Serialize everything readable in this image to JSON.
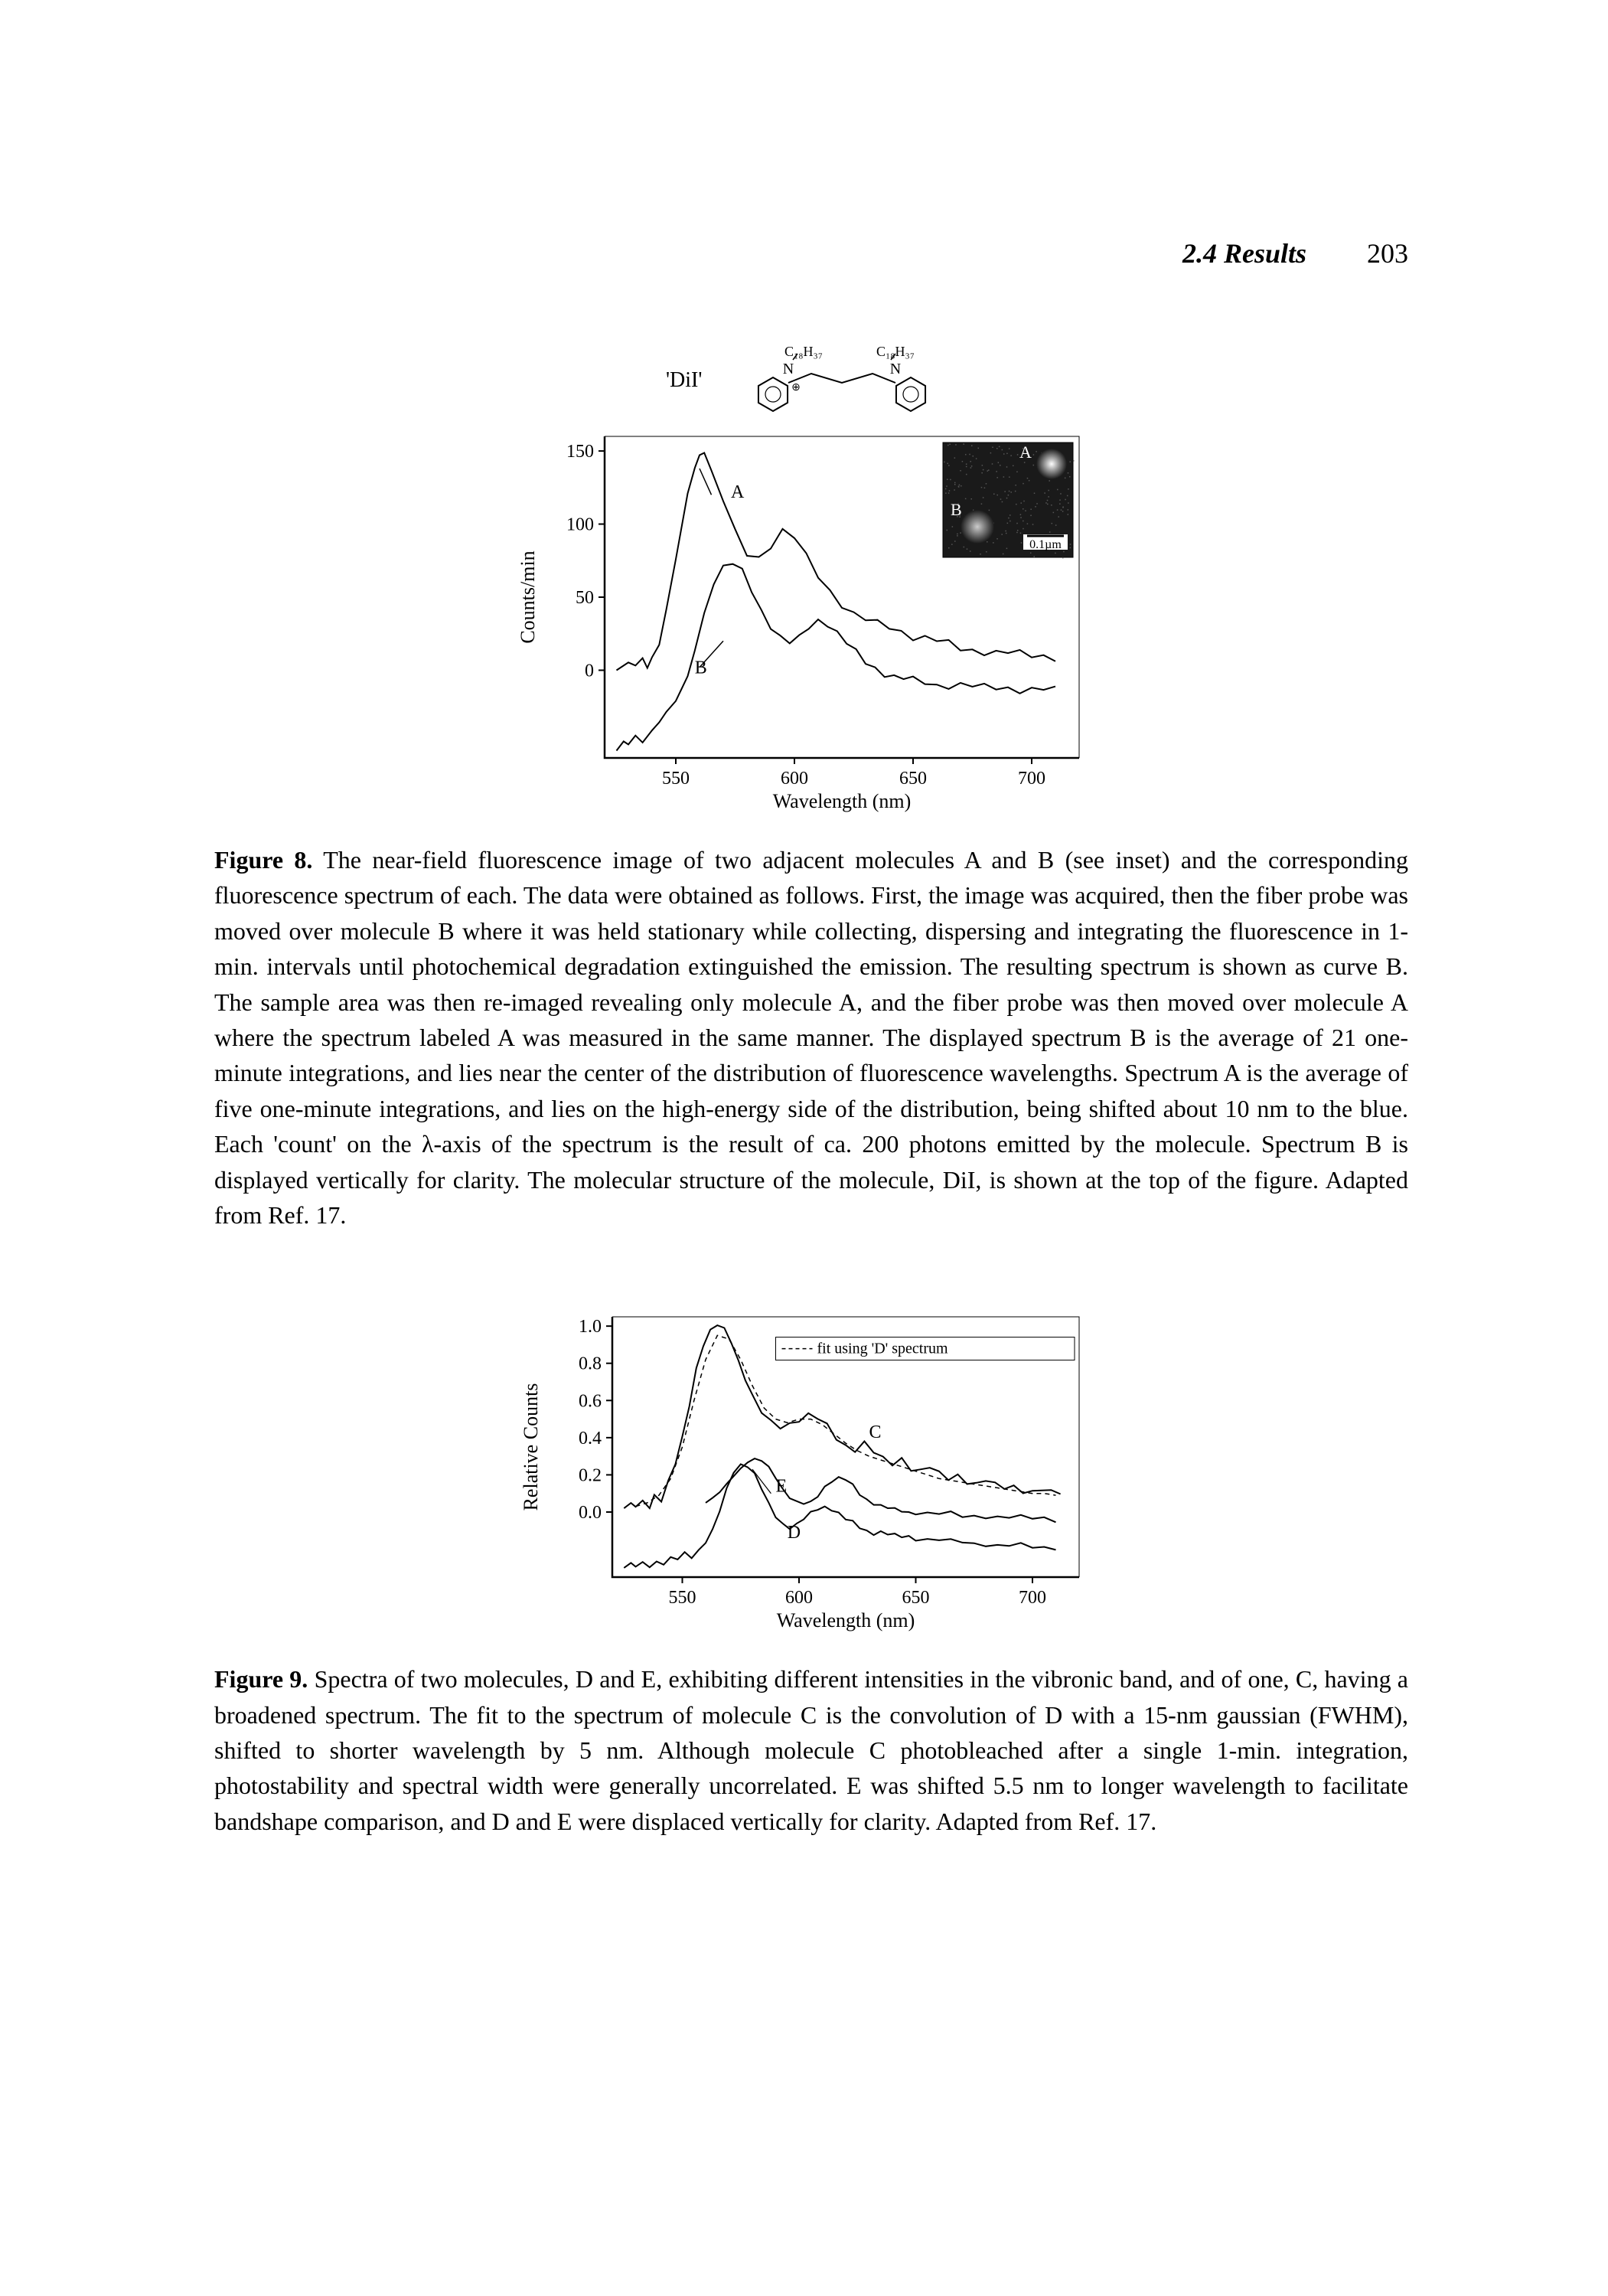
{
  "header": {
    "section": "2.4 Results",
    "page_number": "203"
  },
  "figure8": {
    "molecule_label": "'DiI'",
    "substituent_label": "C₁₈H₃₇",
    "chart": {
      "type": "line",
      "xlabel": "Wavelength (nm)",
      "ylabel": "Counts/min",
      "label_fontsize": 26,
      "tick_fontsize": 24,
      "xlim": [
        520,
        720
      ],
      "ylim": [
        -60,
        160
      ],
      "xticks": [
        550,
        600,
        650,
        700
      ],
      "yticks": [
        0,
        50,
        100,
        150
      ],
      "line_color": "#000000",
      "line_width": 2,
      "background_color": "#ffffff",
      "series_A_label": "A",
      "series_B_label": "B",
      "series_A": [
        [
          525,
          0
        ],
        [
          530,
          4
        ],
        [
          533,
          2
        ],
        [
          536,
          8
        ],
        [
          538,
          3
        ],
        [
          540,
          10
        ],
        [
          543,
          18
        ],
        [
          546,
          40
        ],
        [
          550,
          75
        ],
        [
          555,
          120
        ],
        [
          558,
          140
        ],
        [
          560,
          148
        ],
        [
          562,
          150
        ],
        [
          565,
          135
        ],
        [
          570,
          115
        ],
        [
          575,
          95
        ],
        [
          580,
          80
        ],
        [
          585,
          78
        ],
        [
          590,
          85
        ],
        [
          595,
          95
        ],
        [
          600,
          90
        ],
        [
          605,
          78
        ],
        [
          610,
          65
        ],
        [
          615,
          55
        ],
        [
          620,
          45
        ],
        [
          625,
          38
        ],
        [
          630,
          34
        ],
        [
          635,
          32
        ],
        [
          640,
          30
        ],
        [
          645,
          27
        ],
        [
          650,
          23
        ],
        [
          655,
          22
        ],
        [
          660,
          20
        ],
        [
          665,
          18
        ],
        [
          670,
          15
        ],
        [
          675,
          14
        ],
        [
          680,
          13
        ],
        [
          685,
          12
        ],
        [
          690,
          12
        ],
        [
          695,
          11
        ],
        [
          700,
          10
        ],
        [
          705,
          10
        ],
        [
          710,
          9
        ]
      ],
      "series_B": [
        [
          525,
          -55
        ],
        [
          528,
          -50
        ],
        [
          530,
          -52
        ],
        [
          533,
          -45
        ],
        [
          536,
          -48
        ],
        [
          540,
          -40
        ],
        [
          543,
          -35
        ],
        [
          546,
          -30
        ],
        [
          550,
          -22
        ],
        [
          555,
          -5
        ],
        [
          558,
          15
        ],
        [
          562,
          40
        ],
        [
          566,
          60
        ],
        [
          570,
          70
        ],
        [
          574,
          72
        ],
        [
          578,
          68
        ],
        [
          582,
          55
        ],
        [
          586,
          42
        ],
        [
          590,
          30
        ],
        [
          594,
          22
        ],
        [
          598,
          18
        ],
        [
          602,
          22
        ],
        [
          606,
          30
        ],
        [
          610,
          35
        ],
        [
          614,
          32
        ],
        [
          618,
          25
        ],
        [
          622,
          18
        ],
        [
          626,
          12
        ],
        [
          630,
          6
        ],
        [
          634,
          2
        ],
        [
          638,
          -2
        ],
        [
          642,
          -5
        ],
        [
          646,
          -6
        ],
        [
          650,
          -7
        ],
        [
          655,
          -8
        ],
        [
          660,
          -10
        ],
        [
          665,
          -10
        ],
        [
          670,
          -10
        ],
        [
          675,
          -11
        ],
        [
          680,
          -12
        ],
        [
          685,
          -12
        ],
        [
          690,
          -12
        ],
        [
          695,
          -13
        ],
        [
          700,
          -13
        ],
        [
          705,
          -13
        ],
        [
          710,
          -14
        ]
      ],
      "inset": {
        "label_A": "A",
        "label_B": "B",
        "scale_bar_label": "0.1µm",
        "bg_color": "#1a1a1a",
        "spot_color": "#dddddd"
      }
    },
    "caption_label": "Figure 8.",
    "caption_text": "The near-field fluorescence image of two adjacent molecules A and B (see inset) and the corresponding fluorescence spectrum of each. The data were obtained as follows. First, the image was acquired, then the fiber probe was moved over molecule B where it was held stationary while collecting, dispersing and integrating the fluorescence in 1-min. intervals until photochemical degradation extinguished the emission. The resulting spectrum is shown as curve B. The sample area was then re-imaged revealing only molecule A, and the fiber probe was then moved over molecule A where the spectrum labeled A was measured in the same manner. The displayed spectrum B is the average of 21 one-minute integrations, and lies near the center of the distribution of fluorescence wavelengths. Spectrum A is the average of five one-minute integrations, and lies on the high-energy side of the distribution, being shifted about 10 nm to the blue. Each 'count' on the λ-axis of the spectrum is the result of ca. 200 photons emitted by the molecule. Spectrum B is displayed vertically for clarity. The molecular structure of the molecule, DiI, is shown at the top of the figure. Adapted from Ref. 17."
  },
  "figure9": {
    "chart": {
      "type": "line",
      "xlabel": "Wavelength (nm)",
      "ylabel": "Relative Counts",
      "label_fontsize": 26,
      "tick_fontsize": 24,
      "xlim": [
        520,
        720
      ],
      "ylim": [
        -0.35,
        1.05
      ],
      "xticks": [
        550,
        600,
        650,
        700
      ],
      "yticks": [
        0.0,
        0.2,
        0.4,
        0.6,
        0.8,
        1.0
      ],
      "ytick_labels": [
        "0.0",
        "0.2",
        "0.4",
        "0.6",
        "0.8",
        "1.0"
      ],
      "line_color": "#000000",
      "line_width": 2,
      "background_color": "#ffffff",
      "legend_text": "fit using 'D' spectrum",
      "label_C": "C",
      "label_D": "D",
      "label_E": "E",
      "series_C": [
        [
          525,
          0.02
        ],
        [
          528,
          0.04
        ],
        [
          530,
          0.02
        ],
        [
          533,
          0.06
        ],
        [
          536,
          0.03
        ],
        [
          538,
          0.1
        ],
        [
          541,
          0.06
        ],
        [
          544,
          0.16
        ],
        [
          547,
          0.25
        ],
        [
          550,
          0.4
        ],
        [
          553,
          0.58
        ],
        [
          556,
          0.78
        ],
        [
          559,
          0.9
        ],
        [
          562,
          0.97
        ],
        [
          565,
          1.0
        ],
        [
          568,
          0.98
        ],
        [
          571,
          0.92
        ],
        [
          574,
          0.82
        ],
        [
          577,
          0.72
        ],
        [
          580,
          0.62
        ],
        [
          584,
          0.53
        ],
        [
          588,
          0.48
        ],
        [
          592,
          0.46
        ],
        [
          596,
          0.48
        ],
        [
          600,
          0.5
        ],
        [
          604,
          0.52
        ],
        [
          608,
          0.5
        ],
        [
          612,
          0.46
        ],
        [
          616,
          0.4
        ],
        [
          620,
          0.36
        ],
        [
          624,
          0.34
        ],
        [
          628,
          0.37
        ],
        [
          632,
          0.32
        ],
        [
          636,
          0.28
        ],
        [
          640,
          0.26
        ],
        [
          644,
          0.29
        ],
        [
          648,
          0.24
        ],
        [
          652,
          0.22
        ],
        [
          656,
          0.24
        ],
        [
          660,
          0.2
        ],
        [
          664,
          0.18
        ],
        [
          668,
          0.2
        ],
        [
          672,
          0.17
        ],
        [
          676,
          0.15
        ],
        [
          680,
          0.17
        ],
        [
          684,
          0.14
        ],
        [
          688,
          0.13
        ],
        [
          692,
          0.14
        ],
        [
          696,
          0.12
        ],
        [
          700,
          0.11
        ],
        [
          704,
          0.12
        ],
        [
          708,
          0.1
        ],
        [
          712,
          0.1
        ]
      ],
      "series_C_fit": [
        [
          530,
          0.03
        ],
        [
          535,
          0.05
        ],
        [
          540,
          0.09
        ],
        [
          545,
          0.18
        ],
        [
          550,
          0.35
        ],
        [
          555,
          0.6
        ],
        [
          560,
          0.82
        ],
        [
          565,
          0.95
        ],
        [
          570,
          0.93
        ],
        [
          575,
          0.82
        ],
        [
          580,
          0.68
        ],
        [
          585,
          0.56
        ],
        [
          590,
          0.5
        ],
        [
          595,
          0.48
        ],
        [
          600,
          0.5
        ],
        [
          605,
          0.5
        ],
        [
          610,
          0.47
        ],
        [
          615,
          0.42
        ],
        [
          620,
          0.37
        ],
        [
          625,
          0.33
        ],
        [
          630,
          0.3
        ],
        [
          635,
          0.28
        ],
        [
          640,
          0.26
        ],
        [
          645,
          0.24
        ],
        [
          650,
          0.22
        ],
        [
          655,
          0.2
        ],
        [
          660,
          0.18
        ],
        [
          665,
          0.17
        ],
        [
          670,
          0.16
        ],
        [
          675,
          0.15
        ],
        [
          680,
          0.14
        ],
        [
          685,
          0.13
        ],
        [
          690,
          0.12
        ],
        [
          695,
          0.11
        ],
        [
          700,
          0.1
        ],
        [
          705,
          0.1
        ],
        [
          710,
          0.09
        ]
      ],
      "series_D": [
        [
          525,
          -0.3
        ],
        [
          528,
          -0.28
        ],
        [
          530,
          -0.3
        ],
        [
          533,
          -0.27
        ],
        [
          536,
          -0.29
        ],
        [
          539,
          -0.26
        ],
        [
          542,
          -0.28
        ],
        [
          545,
          -0.25
        ],
        [
          548,
          -0.26
        ],
        [
          551,
          -0.22
        ],
        [
          554,
          -0.24
        ],
        [
          557,
          -0.2
        ],
        [
          560,
          -0.16
        ],
        [
          563,
          -0.1
        ],
        [
          566,
          0.0
        ],
        [
          569,
          0.12
        ],
        [
          572,
          0.22
        ],
        [
          575,
          0.26
        ],
        [
          578,
          0.25
        ],
        [
          581,
          0.2
        ],
        [
          584,
          0.12
        ],
        [
          587,
          0.04
        ],
        [
          590,
          -0.02
        ],
        [
          593,
          -0.06
        ],
        [
          596,
          -0.08
        ],
        [
          599,
          -0.07
        ],
        [
          602,
          -0.04
        ],
        [
          605,
          -0.01
        ],
        [
          608,
          0.02
        ],
        [
          611,
          0.03
        ],
        [
          614,
          0.02
        ],
        [
          617,
          -0.01
        ],
        [
          620,
          -0.04
        ],
        [
          623,
          -0.06
        ],
        [
          626,
          -0.08
        ],
        [
          629,
          -0.1
        ],
        [
          632,
          -0.11
        ],
        [
          635,
          -0.11
        ],
        [
          638,
          -0.12
        ],
        [
          641,
          -0.13
        ],
        [
          644,
          -0.13
        ],
        [
          647,
          -0.13
        ],
        [
          650,
          -0.14
        ],
        [
          655,
          -0.15
        ],
        [
          660,
          -0.15
        ],
        [
          665,
          -0.16
        ],
        [
          670,
          -0.16
        ],
        [
          675,
          -0.17
        ],
        [
          680,
          -0.17
        ],
        [
          685,
          -0.18
        ],
        [
          690,
          -0.18
        ],
        [
          695,
          -0.18
        ],
        [
          700,
          -0.19
        ],
        [
          705,
          -0.19
        ],
        [
          710,
          -0.19
        ]
      ],
      "series_E": [
        [
          560,
          0.05
        ],
        [
          563,
          0.07
        ],
        [
          566,
          0.1
        ],
        [
          569,
          0.15
        ],
        [
          572,
          0.2
        ],
        [
          575,
          0.24
        ],
        [
          578,
          0.27
        ],
        [
          581,
          0.28
        ],
        [
          584,
          0.27
        ],
        [
          587,
          0.24
        ],
        [
          590,
          0.19
        ],
        [
          593,
          0.13
        ],
        [
          596,
          0.08
        ],
        [
          599,
          0.05
        ],
        [
          602,
          0.04
        ],
        [
          605,
          0.05
        ],
        [
          608,
          0.09
        ],
        [
          611,
          0.14
        ],
        [
          614,
          0.17
        ],
        [
          617,
          0.18
        ],
        [
          620,
          0.17
        ],
        [
          623,
          0.14
        ],
        [
          626,
          0.1
        ],
        [
          629,
          0.07
        ],
        [
          632,
          0.05
        ],
        [
          635,
          0.03
        ],
        [
          638,
          0.02
        ],
        [
          641,
          0.01
        ],
        [
          644,
          0.01
        ],
        [
          647,
          0.0
        ],
        [
          650,
          0.0
        ],
        [
          655,
          -0.01
        ],
        [
          660,
          -0.01
        ],
        [
          665,
          -0.01
        ],
        [
          670,
          -0.02
        ],
        [
          675,
          -0.02
        ],
        [
          680,
          -0.02
        ],
        [
          685,
          -0.03
        ],
        [
          690,
          -0.03
        ],
        [
          695,
          -0.03
        ],
        [
          700,
          -0.03
        ],
        [
          705,
          -0.03
        ],
        [
          710,
          -0.04
        ]
      ]
    },
    "caption_label": "Figure 9.",
    "caption_text": "Spectra of two molecules, D and E, exhibiting different intensities in the vibronic band, and of one, C, having a broadened spectrum. The fit to the spectrum of molecule C is the convolution of D with a 15-nm gaussian (FWHM), shifted to shorter wavelength by 5 nm. Although molecule C photobleached after a single 1-min. integration, photostability and spectral width were generally uncorrelated. E was shifted 5.5 nm to longer wavelength to facilitate bandshape comparison, and D and E were displaced vertically for clarity. Adapted from Ref. 17."
  }
}
